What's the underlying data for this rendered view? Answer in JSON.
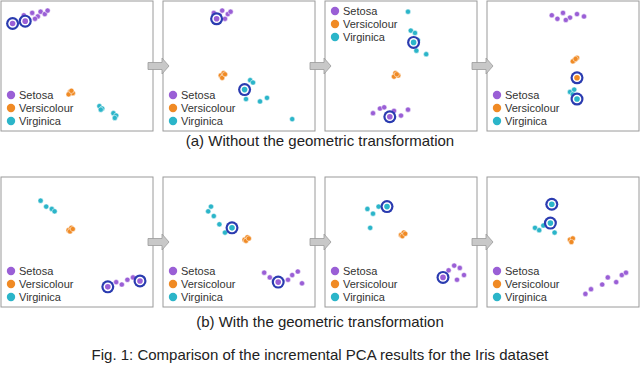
{
  "captions": {
    "a": "(a) Without the geometric transformation",
    "b": "(b) With the geometric transformation",
    "figure": "Fig. 1: Comparison of the incremental PCA results for the Iris dataset"
  },
  "chart_data": [
    {
      "type": "scatter",
      "xlim": [
        0,
        1
      ],
      "ylim": [
        0,
        1
      ],
      "tick_labels": false,
      "legend": "bottom-left",
      "series": [
        {
          "name": "Setosa",
          "color": "#9a5fd6",
          "x": [
            0.12,
            0.18,
            0.22,
            0.24,
            0.27,
            0.2,
            0.29
          ],
          "y": [
            0.93,
            0.95,
            0.92,
            0.96,
            0.94,
            0.9,
            0.97
          ]
        },
        {
          "name": "Versicolour",
          "color": "#f08a24",
          "x": [
            0.45,
            0.47,
            0.44,
            0.46
          ],
          "y": [
            0.28,
            0.27,
            0.26,
            0.29
          ]
        },
        {
          "name": "Virginica",
          "color": "#2bb5c9",
          "x": [
            0.66,
            0.68,
            0.67,
            0.76,
            0.78,
            0.77
          ],
          "y": [
            0.16,
            0.14,
            0.13,
            0.1,
            0.08,
            0.06
          ]
        },
        {
          "name": "Setosa",
          "color": "#9a5fd6",
          "marker": "ring",
          "x": [
            0.04,
            0.13
          ],
          "y": [
            0.86,
            0.88
          ]
        }
      ]
    },
    {
      "type": "scatter",
      "xlim": [
        0,
        1
      ],
      "ylim": [
        0,
        1
      ],
      "tick_labels": false,
      "legend": "bottom-left",
      "series": [
        {
          "name": "Setosa",
          "color": "#9a5fd6",
          "x": [
            0.32,
            0.36,
            0.38,
            0.42,
            0.44,
            0.4
          ],
          "y": [
            0.95,
            0.93,
            0.97,
            0.94,
            0.96,
            0.9
          ]
        },
        {
          "name": "Versicolour",
          "color": "#f08a24",
          "x": [
            0.37,
            0.39,
            0.38,
            0.4
          ],
          "y": [
            0.42,
            0.44,
            0.4,
            0.43
          ]
        },
        {
          "name": "Virginica",
          "color": "#2bb5c9",
          "x": [
            0.58,
            0.6,
            0.55,
            0.65,
            0.7,
            0.88
          ],
          "y": [
            0.38,
            0.36,
            0.22,
            0.2,
            0.23,
            0.05
          ]
        },
        {
          "name": "Setosa",
          "color": "#9a5fd6",
          "marker": "ring",
          "x": [
            0.34
          ],
          "y": [
            0.9
          ]
        },
        {
          "name": "Virginica",
          "color": "#2bb5c9",
          "marker": "ring",
          "x": [
            0.54
          ],
          "y": [
            0.3
          ]
        }
      ]
    },
    {
      "type": "scatter",
      "xlim": [
        0,
        1
      ],
      "ylim": [
        0,
        1
      ],
      "tick_labels": false,
      "legend": "top-left",
      "series": [
        {
          "name": "Setosa",
          "color": "#9a5fd6",
          "x": [
            0.3,
            0.35,
            0.4,
            0.45,
            0.5,
            0.55,
            0.38
          ],
          "y": [
            0.1,
            0.14,
            0.06,
            0.12,
            0.08,
            0.13,
            0.15
          ]
        },
        {
          "name": "Versicolour",
          "color": "#f08a24",
          "x": [
            0.46,
            0.48,
            0.45,
            0.47
          ],
          "y": [
            0.44,
            0.42,
            0.41,
            0.43
          ]
        },
        {
          "name": "Virginica",
          "color": "#2bb5c9",
          "x": [
            0.55,
            0.57,
            0.6,
            0.62,
            0.68,
            0.61
          ],
          "y": [
            0.96,
            0.8,
            0.78,
            0.72,
            0.6,
            0.63
          ]
        },
        {
          "name": "Setosa",
          "color": "#9a5fd6",
          "marker": "ring",
          "x": [
            0.42
          ],
          "y": [
            0.07
          ]
        },
        {
          "name": "Virginica",
          "color": "#2bb5c9",
          "marker": "ring",
          "x": [
            0.59
          ],
          "y": [
            0.7
          ]
        }
      ]
    },
    {
      "type": "scatter",
      "xlim": [
        0,
        1
      ],
      "ylim": [
        0,
        1
      ],
      "tick_labels": false,
      "legend": "bottom-left",
      "series": [
        {
          "name": "Setosa",
          "color": "#9a5fd6",
          "x": [
            0.42,
            0.46,
            0.5,
            0.55,
            0.6,
            0.65,
            0.52
          ],
          "y": [
            0.93,
            0.9,
            0.95,
            0.91,
            0.94,
            0.92,
            0.89
          ]
        },
        {
          "name": "Versicolour",
          "color": "#f08a24",
          "x": [
            0.58,
            0.6,
            0.57,
            0.59
          ],
          "y": [
            0.55,
            0.57,
            0.54,
            0.56
          ]
        },
        {
          "name": "Virginica",
          "color": "#2bb5c9",
          "x": [
            0.55,
            0.57,
            0.58
          ],
          "y": [
            0.28,
            0.26,
            0.3
          ]
        },
        {
          "name": "Versicolour",
          "color": "#f08a24",
          "marker": "ring",
          "x": [
            0.6
          ],
          "y": [
            0.4
          ]
        },
        {
          "name": "Virginica",
          "color": "#2bb5c9",
          "marker": "ring",
          "x": [
            0.6
          ],
          "y": [
            0.22
          ]
        }
      ]
    },
    {
      "type": "scatter",
      "xlim": [
        0,
        1
      ],
      "ylim": [
        0,
        1
      ],
      "tick_labels": false,
      "legend": "bottom-left",
      "series": [
        {
          "name": "Setosa",
          "color": "#9a5fd6",
          "x": [
            0.78,
            0.82,
            0.86,
            0.9
          ],
          "y": [
            0.16,
            0.14,
            0.18,
            0.2
          ]
        },
        {
          "name": "Versicolour",
          "color": "#f08a24",
          "x": [
            0.44,
            0.46,
            0.45,
            0.47
          ],
          "y": [
            0.6,
            0.62,
            0.59,
            0.61
          ]
        },
        {
          "name": "Virginica",
          "color": "#2bb5c9",
          "x": [
            0.24,
            0.28,
            0.32,
            0.34
          ],
          "y": [
            0.85,
            0.8,
            0.78,
            0.76
          ]
        },
        {
          "name": "Setosa",
          "color": "#9a5fd6",
          "marker": "ring",
          "x": [
            0.72,
            0.95
          ],
          "y": [
            0.12,
            0.17
          ]
        }
      ]
    },
    {
      "type": "scatter",
      "xlim": [
        0,
        1
      ],
      "ylim": [
        0,
        1
      ],
      "tick_labels": false,
      "legend": "bottom-left",
      "series": [
        {
          "name": "Setosa",
          "color": "#9a5fd6",
          "x": [
            0.68,
            0.72,
            0.85,
            0.88,
            0.92,
            0.95
          ],
          "y": [
            0.24,
            0.2,
            0.18,
            0.22,
            0.25,
            0.15
          ]
        },
        {
          "name": "Versicolour",
          "color": "#f08a24",
          "x": [
            0.54,
            0.56,
            0.55,
            0.57
          ],
          "y": [
            0.52,
            0.54,
            0.51,
            0.53
          ]
        },
        {
          "name": "Virginica",
          "color": "#2bb5c9",
          "x": [
            0.28,
            0.3,
            0.32,
            0.36,
            0.4
          ],
          "y": [
            0.76,
            0.8,
            0.72,
            0.65,
            0.58
          ]
        },
        {
          "name": "Setosa",
          "color": "#9a5fd6",
          "marker": "ring",
          "x": [
            0.78
          ],
          "y": [
            0.16
          ]
        },
        {
          "name": "Virginica",
          "color": "#2bb5c9",
          "marker": "ring",
          "x": [
            0.45
          ],
          "y": [
            0.62
          ]
        }
      ]
    },
    {
      "type": "scatter",
      "xlim": [
        0,
        1
      ],
      "ylim": [
        0,
        1
      ],
      "tick_labels": false,
      "legend": "bottom-left",
      "series": [
        {
          "name": "Setosa",
          "color": "#9a5fd6",
          "x": [
            0.84,
            0.88,
            0.92,
            0.95,
            0.9
          ],
          "y": [
            0.26,
            0.3,
            0.28,
            0.22,
            0.18
          ]
        },
        {
          "name": "Versicolour",
          "color": "#f08a24",
          "x": [
            0.5,
            0.52,
            0.51,
            0.53
          ],
          "y": [
            0.56,
            0.58,
            0.55,
            0.57
          ]
        },
        {
          "name": "Virginica",
          "color": "#2bb5c9",
          "x": [
            0.26,
            0.28,
            0.3,
            0.34
          ],
          "y": [
            0.78,
            0.62,
            0.74,
            0.8
          ]
        },
        {
          "name": "Setosa",
          "color": "#9a5fd6",
          "marker": "ring",
          "x": [
            0.8
          ],
          "y": [
            0.2
          ]
        },
        {
          "name": "Virginica",
          "color": "#2bb5c9",
          "marker": "ring",
          "x": [
            0.4
          ],
          "y": [
            0.8
          ]
        }
      ]
    },
    {
      "type": "scatter",
      "xlim": [
        0,
        1
      ],
      "ylim": [
        0,
        1
      ],
      "tick_labels": false,
      "legend": "bottom-left",
      "series": [
        {
          "name": "Setosa",
          "color": "#9a5fd6",
          "x": [
            0.66,
            0.7,
            0.78,
            0.82,
            0.88,
            0.92,
            0.95
          ],
          "y": [
            0.06,
            0.1,
            0.14,
            0.2,
            0.16,
            0.22,
            0.24
          ]
        },
        {
          "name": "Versicolour",
          "color": "#f08a24",
          "x": [
            0.55,
            0.57,
            0.56
          ],
          "y": [
            0.52,
            0.53,
            0.5
          ]
        },
        {
          "name": "Virginica",
          "color": "#2bb5c9",
          "x": [
            0.3,
            0.33,
            0.36,
            0.44
          ],
          "y": [
            0.62,
            0.6,
            0.64,
            0.58
          ]
        },
        {
          "name": "Virginica",
          "color": "#2bb5c9",
          "marker": "ring",
          "x": [
            0.42,
            0.41
          ],
          "y": [
            0.82,
            0.66
          ]
        }
      ]
    }
  ]
}
